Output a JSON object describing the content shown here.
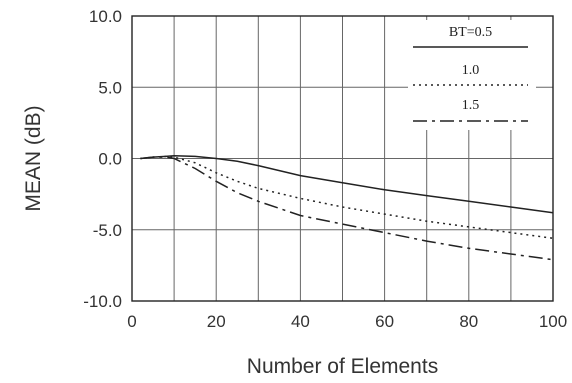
{
  "chart_data": {
    "type": "line",
    "title": "",
    "xlabel": "Number of Elements",
    "ylabel": "MEAN (dB)",
    "xlim": [
      0,
      100
    ],
    "ylim": [
      -10,
      10
    ],
    "x_ticks": [
      "0",
      "20",
      "40",
      "60",
      "80",
      "100"
    ],
    "y_ticks": [
      "-10.0",
      "-5.0",
      "0.0",
      "5.0",
      "10.0"
    ],
    "grid": true,
    "legend_position": "top-right",
    "series": [
      {
        "name": "BT=0.5",
        "dash": "solid",
        "x": [
          2,
          5,
          8,
          10,
          15,
          20,
          25,
          30,
          40,
          50,
          60,
          70,
          80,
          90,
          100
        ],
        "y": [
          0.0,
          0.1,
          0.15,
          0.2,
          0.15,
          0.0,
          -0.2,
          -0.5,
          -1.2,
          -1.7,
          -2.2,
          -2.6,
          -3.0,
          -3.4,
          -3.8
        ]
      },
      {
        "name": "1.0",
        "dash": "dotted",
        "x": [
          2,
          5,
          8,
          10,
          15,
          20,
          25,
          30,
          40,
          50,
          60,
          70,
          80,
          90,
          100
        ],
        "y": [
          0.0,
          0.1,
          0.15,
          0.1,
          -0.3,
          -1.0,
          -1.6,
          -2.1,
          -2.8,
          -3.4,
          -3.9,
          -4.4,
          -4.8,
          -5.2,
          -5.6
        ]
      },
      {
        "name": "1.5",
        "dash": "dashdot",
        "x": [
          2,
          5,
          8,
          10,
          15,
          20,
          25,
          30,
          40,
          50,
          60,
          70,
          80,
          90,
          100
        ],
        "y": [
          0.0,
          0.1,
          0.1,
          0.0,
          -0.7,
          -1.6,
          -2.4,
          -3.0,
          -4.0,
          -4.6,
          -5.2,
          -5.8,
          -6.3,
          -6.7,
          -7.1
        ]
      }
    ]
  }
}
